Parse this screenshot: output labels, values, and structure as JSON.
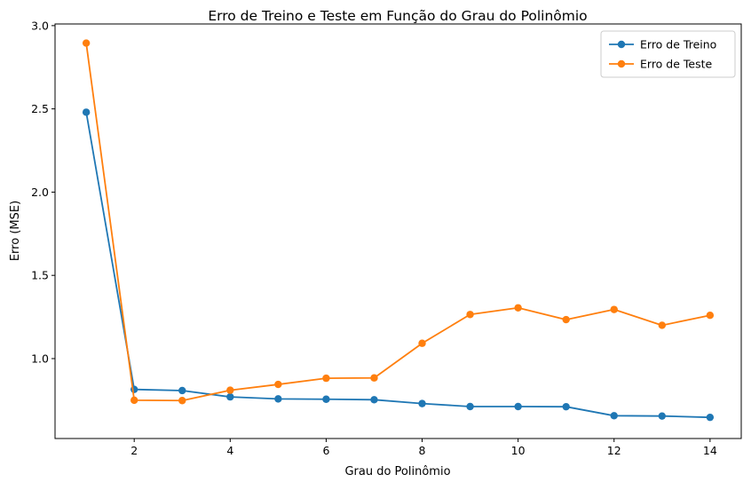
{
  "chart_data": {
    "type": "line",
    "title": "Erro de Treino e Teste em Função do Grau do Polinômio",
    "xlabel": "Grau do Polinômio",
    "ylabel": "Erro (MSE)",
    "xlim": [
      0.35,
      14.65
    ],
    "ylim": [
      0.52,
      3.01
    ],
    "xticks": [
      2,
      4,
      6,
      8,
      10,
      12,
      14
    ],
    "yticks": [
      1.0,
      1.5,
      2.0,
      2.5,
      3.0
    ],
    "ytick_labels": [
      "1.0",
      "1.5",
      "2.0",
      "2.5",
      "3.0"
    ],
    "grid": false,
    "legend_position": "top-right",
    "x": [
      1,
      2,
      3,
      4,
      5,
      6,
      7,
      8,
      9,
      10,
      11,
      12,
      13,
      14
    ],
    "series": [
      {
        "name": "Erro de Treino",
        "color": "#1f77b4",
        "marker": "circle",
        "values": [
          2.48,
          0.815,
          0.808,
          0.77,
          0.758,
          0.756,
          0.753,
          0.73,
          0.712,
          0.712,
          0.711,
          0.657,
          0.655,
          0.647
        ]
      },
      {
        "name": "Erro de Teste",
        "color": "#ff7f0e",
        "marker": "circle",
        "values": [
          2.895,
          0.75,
          0.748,
          0.81,
          0.845,
          0.882,
          0.884,
          1.092,
          1.265,
          1.305,
          1.234,
          1.295,
          1.2,
          1.26
        ]
      }
    ]
  }
}
